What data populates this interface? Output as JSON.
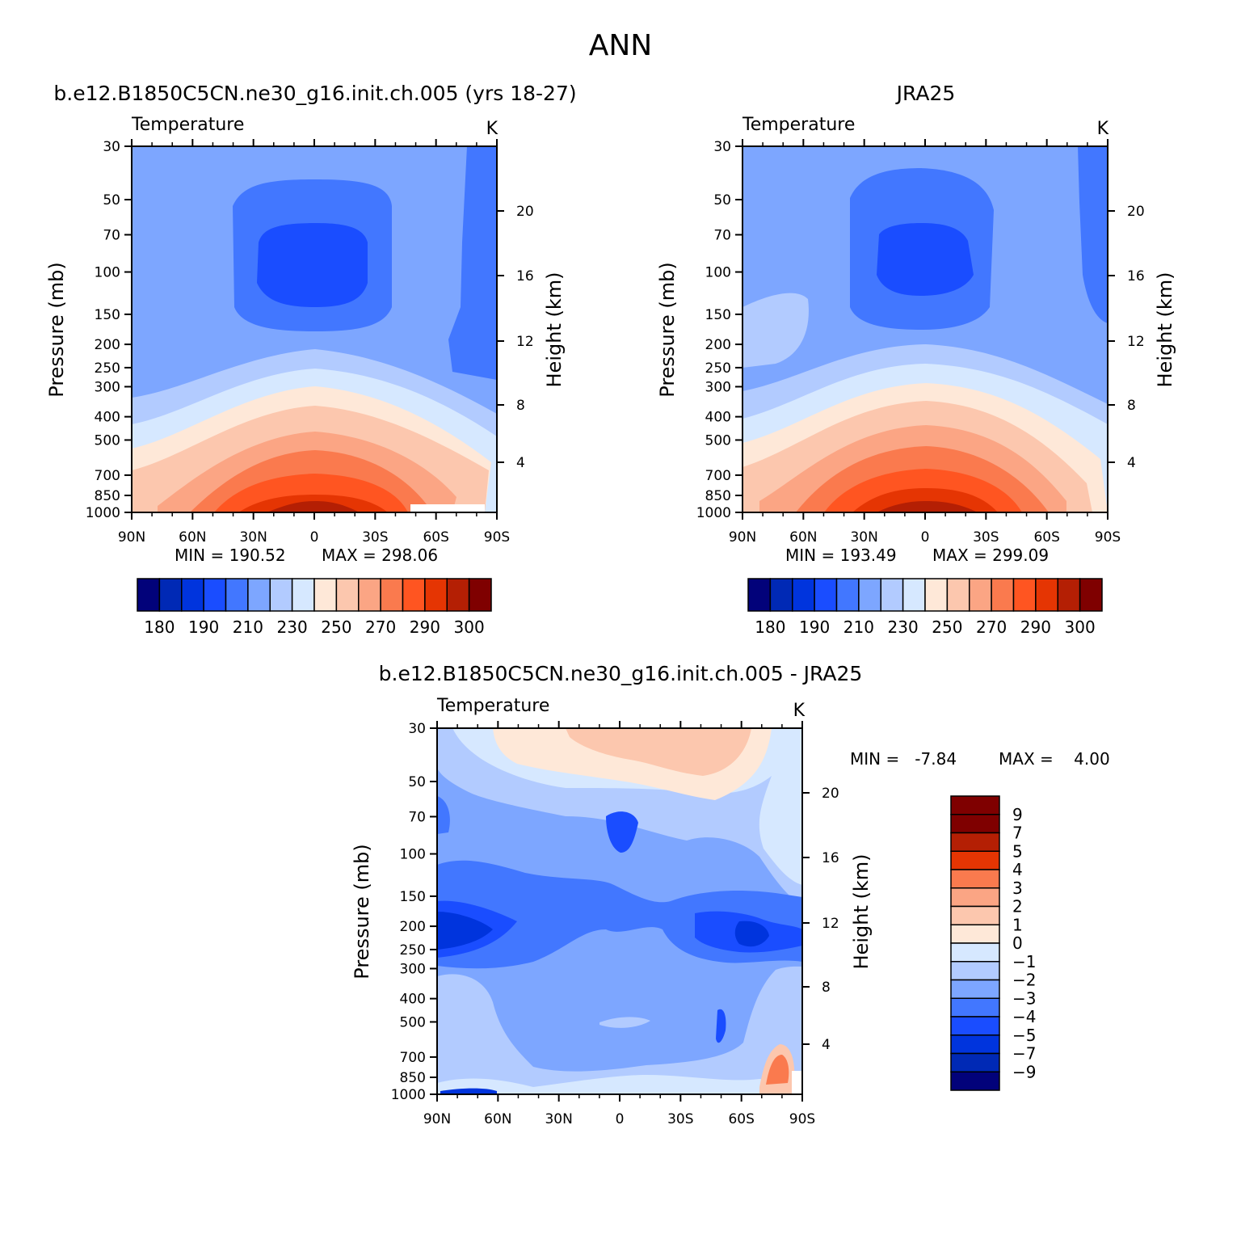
{
  "figure": {
    "season": "ANN",
    "colors": {
      "abs_levels": [
        "#02027a",
        "#0029b5",
        "#0034dd",
        "#1a4dff",
        "#4277ff",
        "#7da6ff",
        "#b2cbff",
        "#d6e8ff",
        "#fee8d8",
        "#fcc7ae",
        "#fba584",
        "#fa7a4e",
        "#ff5521",
        "#e53503",
        "#b41f04",
        "#7f0000"
      ],
      "diff_levels": [
        "#02027a",
        "#0029b5",
        "#0034dd",
        "#1a4dff",
        "#4277ff",
        "#7da6ff",
        "#b2cbff",
        "#d6e8ff",
        "#fee8d8",
        "#fcc7ae",
        "#fba584",
        "#fa7a4e",
        "#e53503",
        "#b41f04",
        "#7f0000"
      ]
    }
  },
  "chart_data": [
    {
      "type": "heatmap",
      "title": "b.e12.B1850C5CN.ne30_g16.init.ch.005 (yrs 18-27)",
      "subtitle_left": "Temperature",
      "subtitle_right": "K",
      "ylabel": "Pressure (mb)",
      "ylabel_right": "Height (km)",
      "x_ticks": [
        "90N",
        "60N",
        "30N",
        "0",
        "30S",
        "60S",
        "90S"
      ],
      "x_range": [
        90,
        -90
      ],
      "y_ticks": [
        "30",
        "50",
        "70",
        "100",
        "150",
        "200",
        "250",
        "300",
        "400",
        "500",
        "700",
        "850",
        "1000"
      ],
      "y_tick_values": [
        30,
        50,
        70,
        100,
        150,
        200,
        250,
        300,
        400,
        500,
        700,
        850,
        1000
      ],
      "y_log_scale": true,
      "height_ticks": [
        "20",
        "16",
        "12",
        "8",
        "4"
      ],
      "min_label": "MIN = 190.52",
      "max_label": "MAX = 298.06",
      "colorbar_labels": [
        "180",
        "190",
        "210",
        "230",
        "250",
        "270",
        "290",
        "300"
      ],
      "contour_levels": [
        180,
        185,
        190,
        200,
        210,
        220,
        230,
        240,
        250,
        260,
        270,
        280,
        290,
        295,
        300
      ]
    },
    {
      "type": "heatmap",
      "title": "JRA25",
      "subtitle_left": "Temperature",
      "subtitle_right": "K",
      "ylabel": "Pressure (mb)",
      "ylabel_right": "Height (km)",
      "x_ticks": [
        "90N",
        "60N",
        "30N",
        "0",
        "30S",
        "60S",
        "90S"
      ],
      "x_range": [
        90,
        -90
      ],
      "y_ticks": [
        "30",
        "50",
        "70",
        "100",
        "150",
        "200",
        "250",
        "300",
        "400",
        "500",
        "700",
        "850",
        "1000"
      ],
      "y_tick_values": [
        30,
        50,
        70,
        100,
        150,
        200,
        250,
        300,
        400,
        500,
        700,
        850,
        1000
      ],
      "y_log_scale": true,
      "height_ticks": [
        "20",
        "16",
        "12",
        "8",
        "4"
      ],
      "min_label": "MIN = 193.49",
      "max_label": "MAX = 299.09",
      "colorbar_labels": [
        "180",
        "190",
        "210",
        "230",
        "250",
        "270",
        "290",
        "300"
      ],
      "contour_levels": [
        180,
        185,
        190,
        200,
        210,
        220,
        230,
        240,
        250,
        260,
        270,
        280,
        290,
        295,
        300
      ]
    },
    {
      "type": "heatmap",
      "title": "b.e12.B1850C5CN.ne30_g16.init.ch.005 - JRA25",
      "subtitle_left": "Temperature",
      "subtitle_right": "K",
      "ylabel": "Pressure (mb)",
      "ylabel_right": "Height (km)",
      "x_ticks": [
        "90N",
        "60N",
        "30N",
        "0",
        "30S",
        "60S",
        "90S"
      ],
      "x_range": [
        90,
        -90
      ],
      "y_ticks": [
        "30",
        "50",
        "70",
        "100",
        "150",
        "200",
        "250",
        "300",
        "400",
        "500",
        "700",
        "850",
        "1000"
      ],
      "y_tick_values": [
        30,
        50,
        70,
        100,
        150,
        200,
        250,
        300,
        400,
        500,
        700,
        850,
        1000
      ],
      "y_log_scale": true,
      "height_ticks": [
        "20",
        "16",
        "12",
        "8",
        "4"
      ],
      "min_label": "MIN =   -7.84",
      "max_label": "MAX =    4.00",
      "colorbar_labels": [
        "9",
        "7",
        "5",
        "4",
        "3",
        "2",
        "1",
        "0",
        "-1",
        "-2",
        "-3",
        "-4",
        "-5",
        "-7",
        "-9"
      ],
      "contour_levels": [
        -9,
        -7,
        -5,
        -4,
        -3,
        -2,
        -1,
        0,
        1,
        2,
        3,
        4,
        5,
        7,
        9
      ]
    }
  ]
}
